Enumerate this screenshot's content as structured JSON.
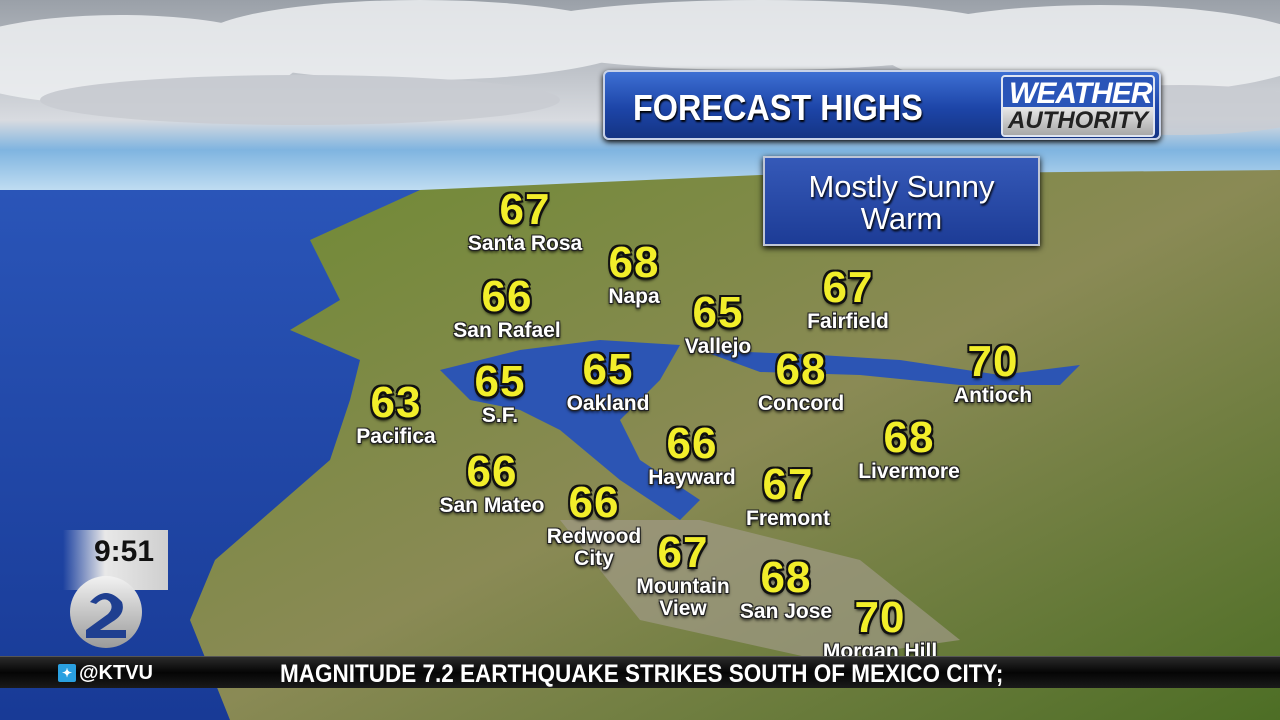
{
  "header": {
    "title": "FORECAST HIGHS",
    "brand_line1": "WEATHER",
    "brand_line2": "AUTHORITY"
  },
  "conditions": {
    "line1": "Mostly Sunny",
    "line2": "Warm"
  },
  "cities": [
    {
      "name": "Santa Rosa",
      "temp": "67"
    },
    {
      "name": "Napa",
      "temp": "68"
    },
    {
      "name": "San Rafael",
      "temp": "66"
    },
    {
      "name": "Fairfield",
      "temp": "67"
    },
    {
      "name": "Vallejo",
      "temp": "65"
    },
    {
      "name": "Antioch",
      "temp": "70"
    },
    {
      "name": "Oakland",
      "temp": "65"
    },
    {
      "name": "S.F.",
      "temp": "65"
    },
    {
      "name": "Concord",
      "temp": "68"
    },
    {
      "name": "Pacifica",
      "temp": "63"
    },
    {
      "name": "Livermore",
      "temp": "68"
    },
    {
      "name": "Hayward",
      "temp": "66"
    },
    {
      "name": "San Mateo",
      "temp": "66"
    },
    {
      "name": "Fremont",
      "temp": "67"
    },
    {
      "name": "Redwood\nCity",
      "temp": "66"
    },
    {
      "name": "Mountain\nView",
      "temp": "67"
    },
    {
      "name": "San Jose",
      "temp": "68"
    },
    {
      "name": "Morgan Hill",
      "temp": "70"
    }
  ],
  "clock": {
    "time": "9:51"
  },
  "station": {
    "channel": "2",
    "social_icon": "twitter-icon",
    "handle": "@KTVU"
  },
  "ticker": {
    "headline": "MAGNITUDE 7.2 EARTHQUAKE STRIKES SOUTH OF MEXICO CITY;"
  },
  "colors": {
    "temp": "#f2ee2a",
    "panel": "#1d45a8",
    "ocean": "#1f45a6",
    "land": "#5e7a2e"
  }
}
